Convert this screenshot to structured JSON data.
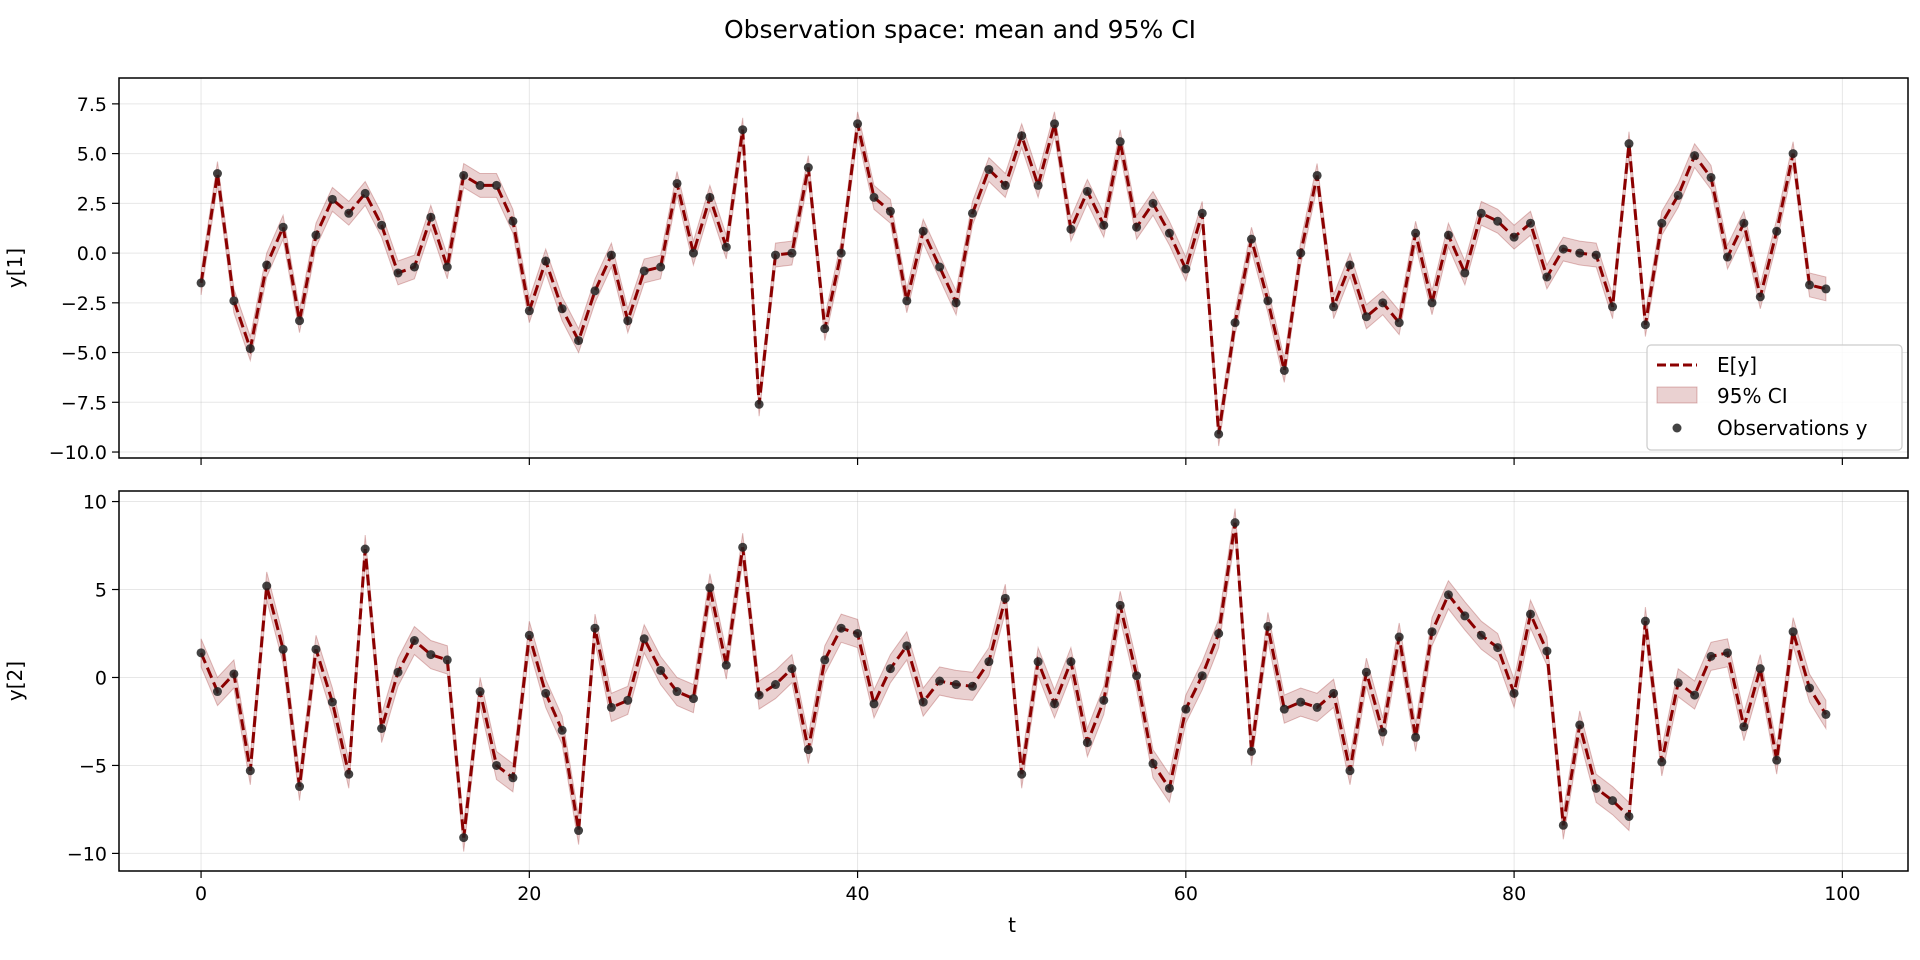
{
  "title": "Observation space: mean and 95% CI",
  "chart_data": {
    "type": "line",
    "title": "Observation space: mean and 95% CI",
    "xlabel": "t",
    "x_ticks": [
      0,
      20,
      40,
      60,
      80,
      100
    ],
    "xlim": [
      -5,
      104
    ],
    "legend": {
      "location": "lower-right of top panel",
      "entries": [
        "E[y]",
        "95% CI",
        "Observations y"
      ]
    },
    "colors": {
      "mean": "#8b0000",
      "ci": "#8b0000",
      "observations": "#222222"
    },
    "panels": [
      {
        "ylabel": "y[1]",
        "ylim": [
          -10.3,
          8.8
        ],
        "y_ticks": [
          7.5,
          5.0,
          2.5,
          0.0,
          -2.5,
          -5.0,
          -7.5,
          -10.0
        ],
        "y_tick_labels": [
          "7.5",
          "5.0",
          "2.5",
          "0.0",
          "−2.5",
          "−5.0",
          "−7.5",
          "−10.0"
        ],
        "ci_halfwidth": 0.6,
        "observations": [
          -1.5,
          4.0,
          -2.4,
          -4.8,
          -0.6,
          1.3,
          -3.4,
          0.9,
          2.7,
          2.0,
          3.0,
          1.4,
          -1.0,
          -0.7,
          1.8,
          -0.7,
          3.9,
          3.4,
          3.4,
          1.6,
          -2.9,
          -0.4,
          -2.8,
          -4.4,
          -1.9,
          -0.1,
          -3.4,
          -0.9,
          -0.7,
          3.5,
          0.0,
          2.8,
          0.3,
          6.2,
          -7.6,
          -0.1,
          0.0,
          4.3,
          -3.8,
          0.0,
          6.5,
          2.8,
          2.1,
          -2.4,
          1.1,
          -0.7,
          -2.5,
          2.0,
          4.2,
          3.4,
          5.9,
          3.4,
          6.5,
          1.2,
          3.1,
          1.4,
          5.6,
          1.3,
          2.5,
          1.0,
          -0.8,
          2.0,
          -9.1,
          -3.5,
          0.7,
          -2.4,
          -5.9,
          0.0,
          3.9,
          -2.7,
          -0.6,
          -3.2,
          -2.5,
          -3.5,
          1.0,
          -2.5,
          0.9,
          -1.0,
          2.0,
          1.6,
          0.8,
          1.5,
          -1.2,
          0.2,
          0.0,
          -0.1,
          -2.7,
          5.5,
          -3.6,
          1.5,
          2.9,
          4.9,
          3.8,
          -0.2,
          1.5,
          -2.2,
          1.1,
          5.0,
          -1.6,
          -1.8
        ],
        "mean": [
          -1.5,
          4.0,
          -2.4,
          -4.8,
          -0.6,
          1.3,
          -3.4,
          0.9,
          2.7,
          2.0,
          3.0,
          1.4,
          -1.0,
          -0.7,
          1.8,
          -0.7,
          3.9,
          3.4,
          3.4,
          1.6,
          -2.9,
          -0.4,
          -2.8,
          -4.4,
          -1.9,
          -0.1,
          -3.4,
          -0.9,
          -0.7,
          3.5,
          0.0,
          2.8,
          0.3,
          6.2,
          -7.6,
          -0.1,
          0.0,
          4.3,
          -3.8,
          0.0,
          6.5,
          2.8,
          2.1,
          -2.4,
          1.1,
          -0.7,
          -2.5,
          2.0,
          4.2,
          3.4,
          5.9,
          3.4,
          6.5,
          1.2,
          3.1,
          1.4,
          5.6,
          1.3,
          2.5,
          1.0,
          -0.8,
          2.0,
          -9.1,
          -3.5,
          0.7,
          -2.4,
          -5.9,
          0.0,
          3.9,
          -2.7,
          -0.6,
          -3.2,
          -2.5,
          -3.5,
          1.0,
          -2.5,
          0.9,
          -1.0,
          2.0,
          1.6,
          0.8,
          1.5,
          -1.2,
          0.2,
          0.0,
          -0.1,
          -2.7,
          5.5,
          -3.6,
          1.5,
          2.9,
          4.9,
          3.8,
          -0.2,
          1.5,
          -2.2,
          1.1,
          5.0,
          -1.6,
          -1.8
        ]
      },
      {
        "ylabel": "y[2]",
        "ylim": [
          -11.0,
          10.6
        ],
        "y_ticks": [
          10,
          5,
          0,
          -5,
          -10
        ],
        "y_tick_labels": [
          "10",
          "5",
          "0",
          "−5",
          "−10"
        ],
        "ci_halfwidth": 0.8,
        "observations": [
          1.4,
          -0.8,
          0.2,
          -5.3,
          5.2,
          1.6,
          -6.2,
          1.6,
          -1.4,
          -5.5,
          7.3,
          -2.9,
          0.3,
          2.1,
          1.3,
          1.0,
          -9.1,
          -0.8,
          -5.0,
          -5.7,
          2.4,
          -0.9,
          -3.0,
          -8.7,
          2.8,
          -1.7,
          -1.3,
          2.2,
          0.4,
          -0.8,
          -1.2,
          5.1,
          0.7,
          7.4,
          -1.0,
          -0.4,
          0.5,
          -4.1,
          1.0,
          2.8,
          2.5,
          -1.5,
          0.5,
          1.8,
          -1.4,
          -0.2,
          -0.4,
          -0.5,
          0.9,
          4.5,
          -5.5,
          0.9,
          -1.5,
          0.9,
          -3.7,
          -1.3,
          4.1,
          0.1,
          -4.9,
          -6.3,
          -1.8,
          0.1,
          2.5,
          8.8,
          -4.2,
          2.9,
          -1.8,
          -1.4,
          -1.7,
          -0.9,
          -5.3,
          0.3,
          -3.1,
          2.3,
          -3.4,
          2.6,
          4.7,
          3.5,
          2.4,
          1.7,
          -0.9,
          3.6,
          1.5,
          -8.4,
          -2.7,
          -6.3,
          -7.0,
          -7.9,
          3.2,
          -4.8,
          -0.3,
          -1.0,
          1.2,
          1.4,
          -2.8,
          0.5,
          -4.7,
          2.6,
          -0.6,
          -2.1
        ],
        "mean": [
          1.4,
          -0.8,
          0.2,
          -5.3,
          5.2,
          1.6,
          -6.2,
          1.6,
          -1.4,
          -5.5,
          7.3,
          -2.9,
          0.3,
          2.1,
          1.3,
          1.0,
          -9.1,
          -0.8,
          -5.0,
          -5.7,
          2.4,
          -0.9,
          -3.0,
          -8.7,
          2.8,
          -1.7,
          -1.3,
          2.2,
          0.4,
          -0.8,
          -1.2,
          5.1,
          0.7,
          7.4,
          -1.0,
          -0.4,
          0.5,
          -4.1,
          1.0,
          2.8,
          2.5,
          -1.5,
          0.5,
          1.8,
          -1.4,
          -0.2,
          -0.4,
          -0.5,
          0.9,
          4.5,
          -5.5,
          0.9,
          -1.5,
          0.9,
          -3.7,
          -1.3,
          4.1,
          0.1,
          -4.9,
          -6.3,
          -1.8,
          0.1,
          2.5,
          8.8,
          -4.2,
          2.9,
          -1.8,
          -1.4,
          -1.7,
          -0.9,
          -5.3,
          0.3,
          -3.1,
          2.3,
          -3.4,
          2.6,
          4.7,
          3.5,
          2.4,
          1.7,
          -0.9,
          3.6,
          1.5,
          -8.4,
          -2.7,
          -6.3,
          -7.0,
          -7.9,
          3.2,
          -4.8,
          -0.3,
          -1.0,
          1.2,
          1.4,
          -2.8,
          0.5,
          -4.7,
          2.6,
          -0.6,
          -2.1
        ]
      }
    ]
  }
}
